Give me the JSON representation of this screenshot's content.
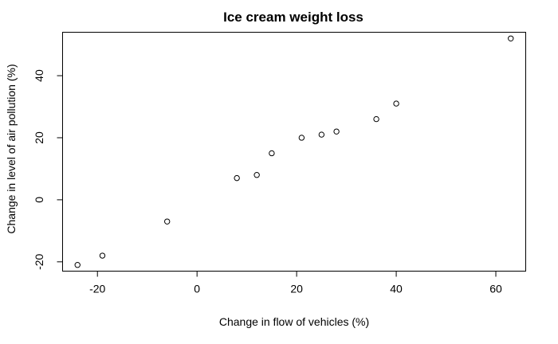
{
  "chart_data": {
    "type": "scatter",
    "title": "Ice cream weight loss",
    "xlabel": "Change in flow of vehicles (%)",
    "ylabel": "Change in level of air pollution (%)",
    "xlim": [
      -27,
      66
    ],
    "ylim": [
      -23,
      54
    ],
    "xticks": [
      -20,
      0,
      20,
      40,
      60
    ],
    "yticks": [
      -20,
      0,
      20,
      40
    ],
    "xtick_labels": [
      "-20",
      "0",
      "20",
      "40",
      "60"
    ],
    "ytick_labels": [
      "-20",
      "0",
      "20",
      "40"
    ],
    "grid": false,
    "marker": "open-circle",
    "points": [
      {
        "x": -24,
        "y": -21
      },
      {
        "x": -19,
        "y": -18
      },
      {
        "x": -6,
        "y": -7
      },
      {
        "x": 8,
        "y": 7
      },
      {
        "x": 12,
        "y": 8
      },
      {
        "x": 15,
        "y": 15
      },
      {
        "x": 21,
        "y": 20
      },
      {
        "x": 25,
        "y": 21
      },
      {
        "x": 28,
        "y": 22
      },
      {
        "x": 36,
        "y": 26
      },
      {
        "x": 40,
        "y": 31
      },
      {
        "x": 63,
        "y": 52
      }
    ]
  }
}
